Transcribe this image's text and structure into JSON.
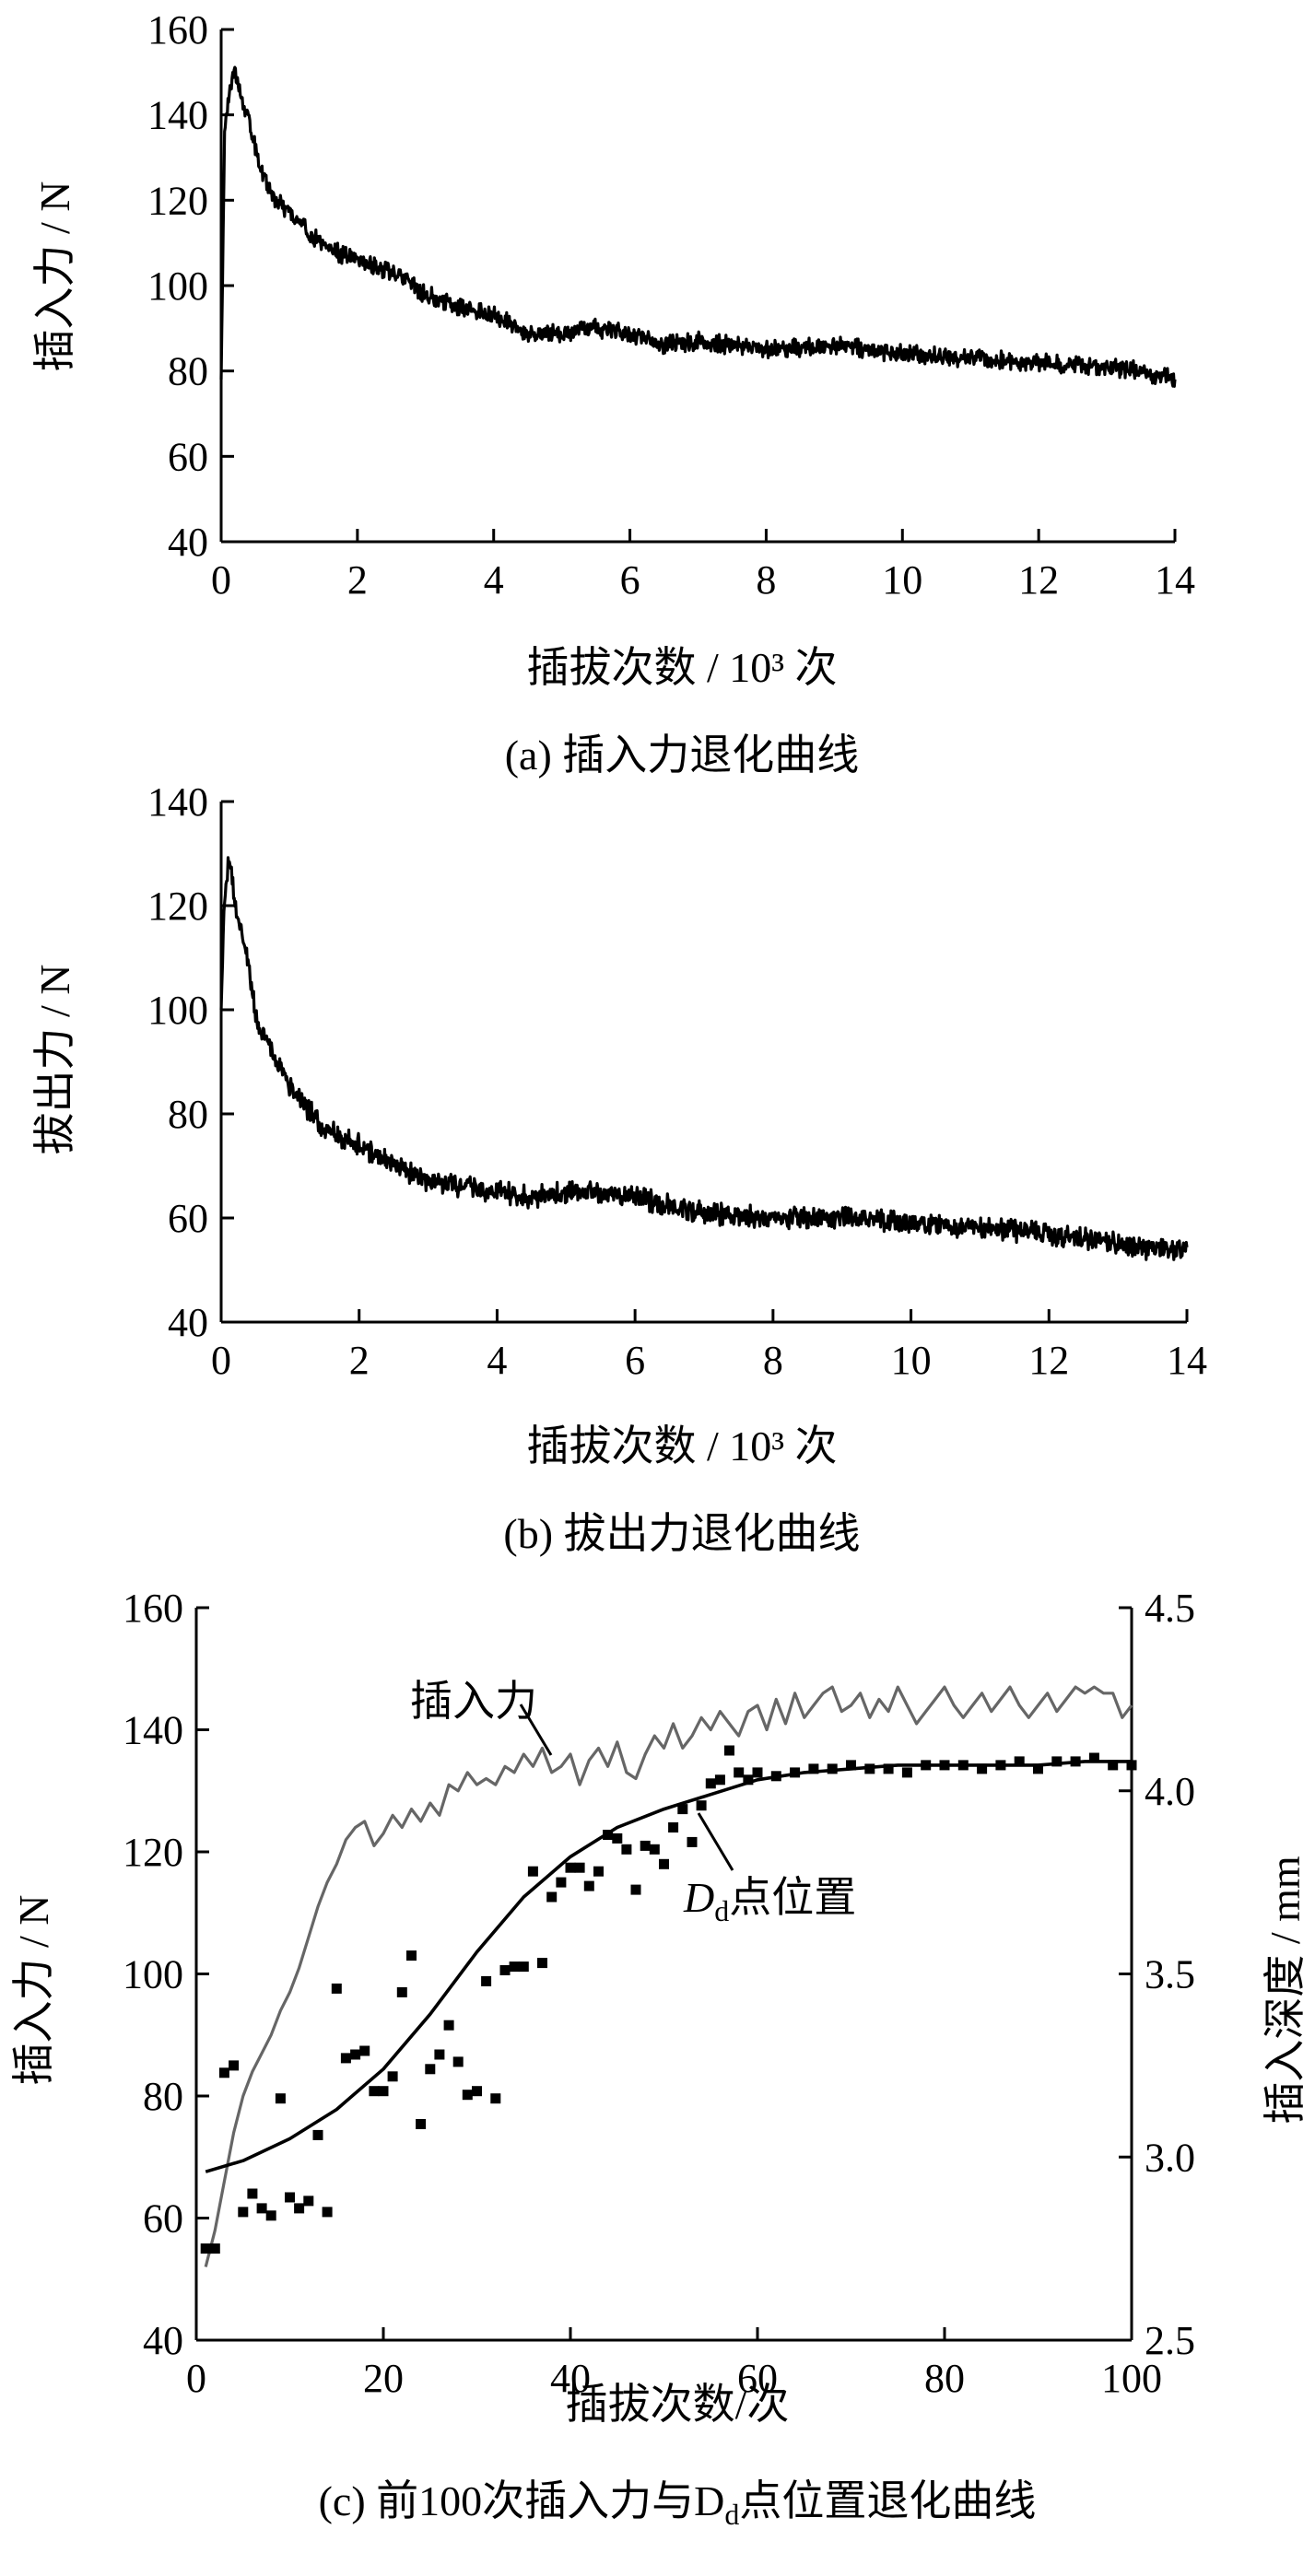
{
  "chart_data": [
    {
      "type": "line",
      "caption": "(a)  插入力退化曲线",
      "xlabel": "插拔次数 / 10³ 次",
      "ylabel": "插入力 / N",
      "xlim": [
        0,
        14
      ],
      "ylim": [
        40,
        160
      ],
      "xticks": [
        0,
        2,
        4,
        6,
        8,
        10,
        12,
        14
      ],
      "yticks": [
        40,
        60,
        80,
        100,
        120,
        140,
        160
      ],
      "grid": false,
      "series": [
        {
          "color": "#000000",
          "x": [
            0,
            0.05,
            0.1,
            0.15,
            0.2,
            0.25,
            0.3,
            0.4,
            0.5,
            0.6,
            0.8,
            1.0,
            1.2,
            1.5,
            2.0,
            2.5,
            3.0,
            3.5,
            4.0,
            4.5,
            5.0,
            5.5,
            6.0,
            6.5,
            7.0,
            8.0,
            9.0,
            10.0,
            11.0,
            12.0,
            13.0,
            13.5,
            14.0
          ],
          "y": [
            78,
            135,
            143,
            148,
            150,
            147,
            143,
            140,
            132,
            127,
            120,
            117,
            114,
            109,
            106,
            103,
            98,
            95,
            93,
            89,
            89,
            90,
            89,
            86,
            87,
            85,
            86,
            84,
            83,
            82,
            81,
            80,
            78
          ],
          "noise": 2.2
        }
      ]
    },
    {
      "type": "line",
      "caption": "(b)  拔出力退化曲线",
      "xlabel": "插拔次数 / 10³ 次",
      "ylabel": "拔出力 / N",
      "xlim": [
        0,
        14
      ],
      "ylim": [
        40,
        140
      ],
      "xticks": [
        0,
        2,
        4,
        6,
        8,
        10,
        12,
        14
      ],
      "yticks": [
        40,
        60,
        80,
        100,
        120,
        140
      ],
      "grid": false,
      "series": [
        {
          "color": "#000000",
          "x": [
            0,
            0.05,
            0.1,
            0.15,
            0.2,
            0.3,
            0.4,
            0.5,
            0.7,
            1.0,
            1.5,
            2.0,
            2.5,
            3.0,
            3.5,
            4.0,
            4.5,
            5.0,
            5.5,
            6.0,
            7.0,
            8.0,
            9.0,
            10.0,
            11.0,
            12.0,
            13.0,
            13.5,
            14.0
          ],
          "y": [
            100,
            122,
            128,
            126,
            120,
            115,
            108,
            99,
            93,
            85,
            77,
            74,
            70,
            67,
            66,
            65,
            64,
            65,
            65,
            64,
            61,
            60,
            60,
            59,
            58,
            57,
            55,
            54,
            54
          ],
          "noise": 2.2
        }
      ]
    },
    {
      "type": "line",
      "caption": "(c)  前100次插入力与D",
      "caption_subscript": "d",
      "caption_tail": "点位置退化曲线",
      "xlabel": "插拔次数/次",
      "ylabel": "插入力 / N",
      "y2label": "插入深度 / mm",
      "xlim": [
        0,
        100
      ],
      "ylim": [
        40,
        160
      ],
      "y2lim": [
        2.5,
        4.5
      ],
      "xticks": [
        0,
        20,
        40,
        60,
        80,
        100
      ],
      "yticks": [
        40,
        60,
        80,
        100,
        120,
        140,
        160
      ],
      "y2ticks": [
        "2.5",
        "3.0",
        "3.5",
        "4.0",
        "4.5"
      ],
      "annotations": [
        {
          "text": "插入力",
          "target": "insertion-force"
        },
        {
          "text": "D",
          "subscript": "d",
          "tail": "点位置",
          "target": "fit-curve"
        }
      ],
      "series": [
        {
          "id": "insertion-force",
          "axis": "left",
          "color": "#666666",
          "x": [
            1,
            2,
            3,
            4,
            5,
            6,
            7,
            8,
            9,
            10,
            11,
            12,
            13,
            14,
            15,
            16,
            17,
            18,
            19,
            20,
            21,
            22,
            23,
            24,
            25,
            26,
            27,
            28,
            29,
            30,
            31,
            32,
            33,
            34,
            35,
            36,
            37,
            38,
            39,
            40,
            41,
            42,
            43,
            44,
            45,
            46,
            47,
            48,
            49,
            50,
            51,
            52,
            53,
            54,
            55,
            56,
            57,
            58,
            59,
            60,
            61,
            62,
            63,
            64,
            65,
            66,
            67,
            68,
            69,
            70,
            71,
            72,
            73,
            74,
            75,
            76,
            77,
            78,
            79,
            80,
            81,
            82,
            83,
            84,
            85,
            86,
            87,
            88,
            89,
            90,
            91,
            92,
            93,
            94,
            95,
            96,
            97,
            98,
            99,
            100
          ],
          "y": [
            52,
            58,
            66,
            74,
            80,
            84,
            87,
            90,
            94,
            97,
            101,
            106,
            111,
            115,
            118,
            122,
            124,
            125,
            121,
            123,
            126,
            124,
            127,
            125,
            128,
            126,
            131,
            130,
            133,
            131,
            132,
            131,
            134,
            133,
            136,
            134,
            137,
            133,
            134,
            136,
            131,
            135,
            137,
            134,
            138,
            133,
            132,
            136,
            139,
            137,
            141,
            137,
            139,
            142,
            140,
            143,
            141,
            139,
            143,
            144,
            140,
            145,
            141,
            146,
            142,
            144,
            146,
            147,
            143,
            144,
            146,
            142,
            145,
            143,
            147,
            144,
            141,
            143,
            145,
            147,
            144,
            142,
            144,
            146,
            143,
            145,
            147,
            144,
            142,
            144,
            146,
            143,
            145,
            147,
            146,
            147,
            146,
            146,
            142,
            144
          ]
        },
        {
          "id": "fit-curve",
          "axis": "right",
          "color": "#000000",
          "x": [
            1,
            5,
            10,
            15,
            20,
            25,
            30,
            35,
            40,
            45,
            50,
            55,
            60,
            65,
            70,
            75,
            80,
            85,
            90,
            95,
            100
          ],
          "y": [
            2.96,
            2.99,
            3.05,
            3.13,
            3.24,
            3.39,
            3.56,
            3.71,
            3.82,
            3.9,
            3.95,
            3.99,
            4.03,
            4.05,
            4.06,
            4.07,
            4.07,
            4.07,
            4.07,
            4.08,
            4.08
          ]
        },
        {
          "id": "measured-points",
          "axis": "right",
          "type": "scatter",
          "color": "#000000",
          "x": [
            1,
            2,
            3,
            4,
            5,
            6,
            7,
            8,
            9,
            10,
            11,
            12,
            13,
            14,
            15,
            16,
            17,
            18,
            19,
            20,
            21,
            22,
            23,
            24,
            25,
            26,
            27,
            28,
            29,
            30,
            31,
            32,
            33,
            34,
            35,
            36,
            37,
            38,
            39,
            40,
            41,
            42,
            43,
            44,
            45,
            46,
            47,
            48,
            49,
            50,
            51,
            52,
            53,
            54,
            55,
            56,
            57,
            58,
            59,
            60,
            62,
            64,
            66,
            68,
            70,
            72,
            74,
            76,
            78,
            80,
            82,
            84,
            86,
            88,
            90,
            92,
            94,
            96,
            98,
            100
          ],
          "y": [
            2.75,
            2.75,
            3.23,
            3.25,
            2.85,
            2.9,
            2.86,
            2.84,
            3.16,
            2.89,
            2.86,
            2.88,
            3.06,
            2.85,
            3.46,
            3.27,
            3.28,
            3.29,
            3.18,
            3.18,
            3.22,
            3.45,
            3.55,
            3.09,
            3.24,
            3.28,
            3.36,
            3.26,
            3.17,
            3.18,
            3.48,
            3.16,
            3.51,
            3.52,
            3.52,
            3.78,
            3.53,
            3.71,
            3.75,
            3.79,
            3.79,
            3.74,
            3.78,
            3.88,
            3.87,
            3.84,
            3.73,
            3.85,
            3.84,
            3.8,
            3.9,
            3.95,
            3.86,
            3.96,
            4.02,
            4.03,
            4.11,
            4.05,
            4.03,
            4.05,
            4.04,
            4.05,
            4.06,
            4.06,
            4.07,
            4.06,
            4.06,
            4.05,
            4.07,
            4.07,
            4.07,
            4.06,
            4.07,
            4.08,
            4.06,
            4.08,
            4.08,
            4.09,
            4.07,
            4.07
          ]
        }
      ]
    }
  ]
}
